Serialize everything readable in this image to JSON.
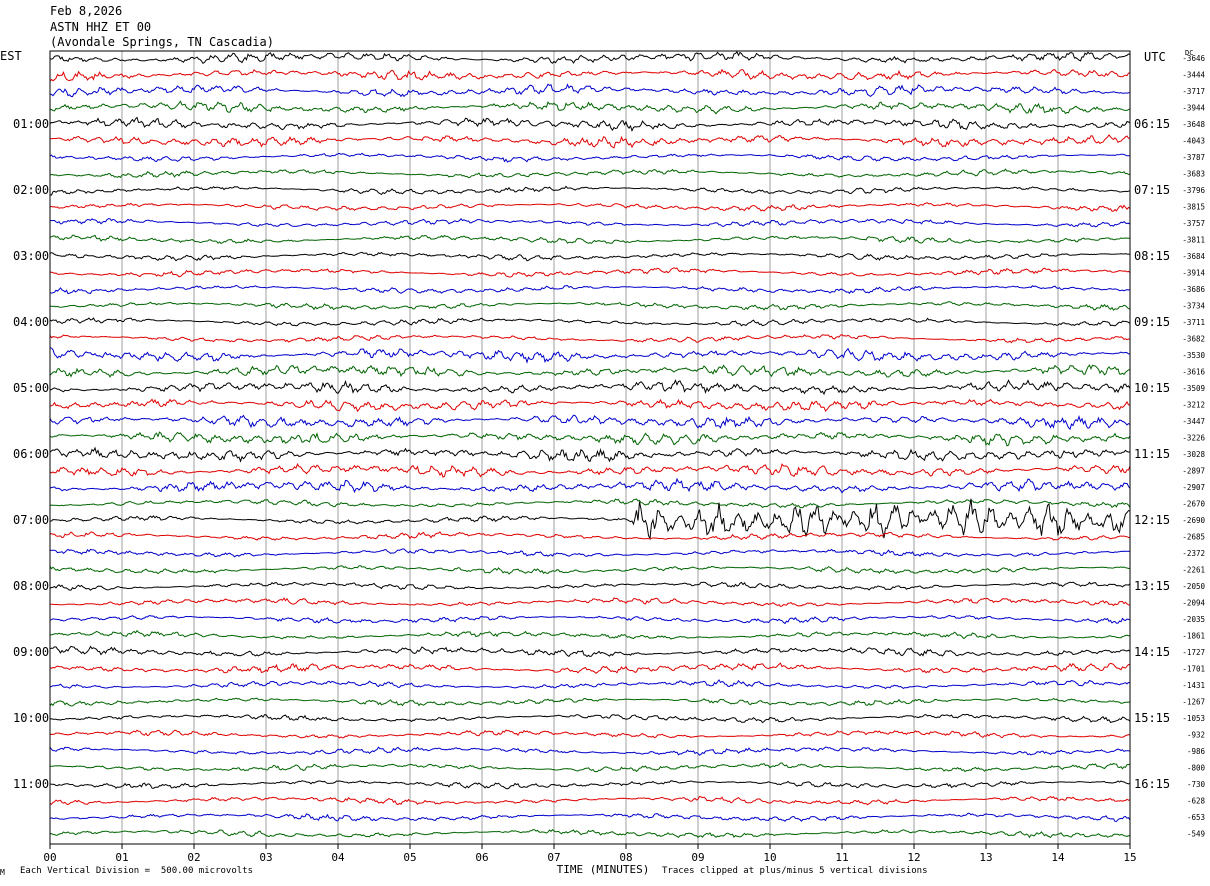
{
  "header": {
    "date": "Feb 8,2026",
    "station": "ASTN HHZ ET 00",
    "location": "(Avondale Springs, TN Cascadia)"
  },
  "left_timezone": "EST",
  "right_timezone": "UTC",
  "dc_label": "DC",
  "footer": {
    "scale_note": "Each Vertical Division =  500.00 microvolts",
    "clip_note": "Traces clipped at plus/minus 5 vertical divisions",
    "corner_mark": "M"
  },
  "colors": {
    "black": "#000000",
    "red": "#e00000",
    "blue": "#0000cc",
    "green": "#006400",
    "grid": "#888888"
  },
  "chart_data": {
    "type": "line",
    "xlabel": "TIME (MINUTES)",
    "x_ticks": [
      "00",
      "01",
      "02",
      "03",
      "04",
      "05",
      "06",
      "07",
      "08",
      "09",
      "10",
      "11",
      "12",
      "13",
      "14",
      "15"
    ],
    "xlim": [
      0,
      15
    ],
    "trace_colors": [
      "black",
      "red",
      "blue",
      "green"
    ],
    "left_hour_labels": [
      "01:00",
      "02:00",
      "03:00",
      "04:00",
      "05:00",
      "06:00",
      "07:00",
      "08:00",
      "09:00",
      "10:00",
      "11:00"
    ],
    "right_hour_labels": [
      "06:15",
      "07:15",
      "08:15",
      "09:15",
      "10:15",
      "11:15",
      "12:15",
      "13:15",
      "14:15",
      "15:15",
      "16:15"
    ],
    "dc_offsets": [
      -3646,
      -3444,
      -3717,
      -3944,
      -3648,
      -4043,
      -3787,
      -3683,
      -3796,
      -3815,
      -3757,
      -3811,
      -3684,
      -3914,
      -3686,
      -3734,
      -3711,
      -3682,
      -3530,
      -3616,
      -3509,
      -3212,
      -3447,
      -3226,
      -3028,
      -2897,
      -2907,
      -2670,
      -2690,
      -2685,
      -2372,
      -2261,
      -2050,
      -2094,
      -2035,
      -1861,
      -1727,
      -1701,
      -1431,
      -1267,
      -1053,
      -932,
      -986,
      -800,
      -730,
      -628,
      -653,
      -549
    ]
  }
}
